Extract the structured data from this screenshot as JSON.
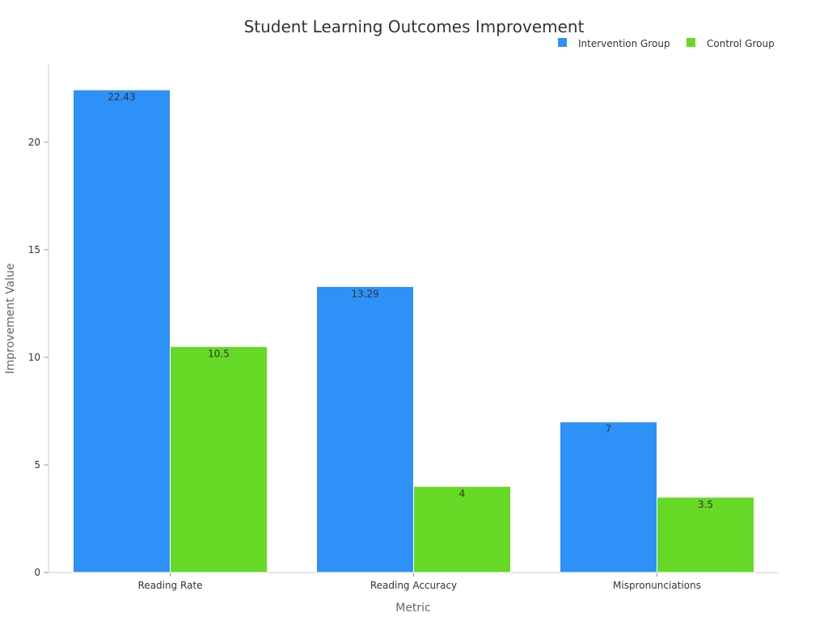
{
  "chart_data": {
    "type": "bar",
    "title": "Student Learning Outcomes Improvement",
    "xlabel": "Metric",
    "ylabel": "Improvement Value",
    "categories": [
      "Reading Rate",
      "Reading Accuracy",
      "Mispronunciations"
    ],
    "series": [
      {
        "name": "Intervention Group",
        "color": "#2e91f7",
        "values": [
          22.43,
          13.29,
          7
        ]
      },
      {
        "name": "Control Group",
        "color": "#66d926",
        "values": [
          10.5,
          4,
          3.5
        ]
      }
    ],
    "ylim": [
      0,
      23.6
    ],
    "yticks": [
      0,
      5,
      10,
      15,
      20
    ],
    "legend_position": "top-right",
    "grid": false
  }
}
